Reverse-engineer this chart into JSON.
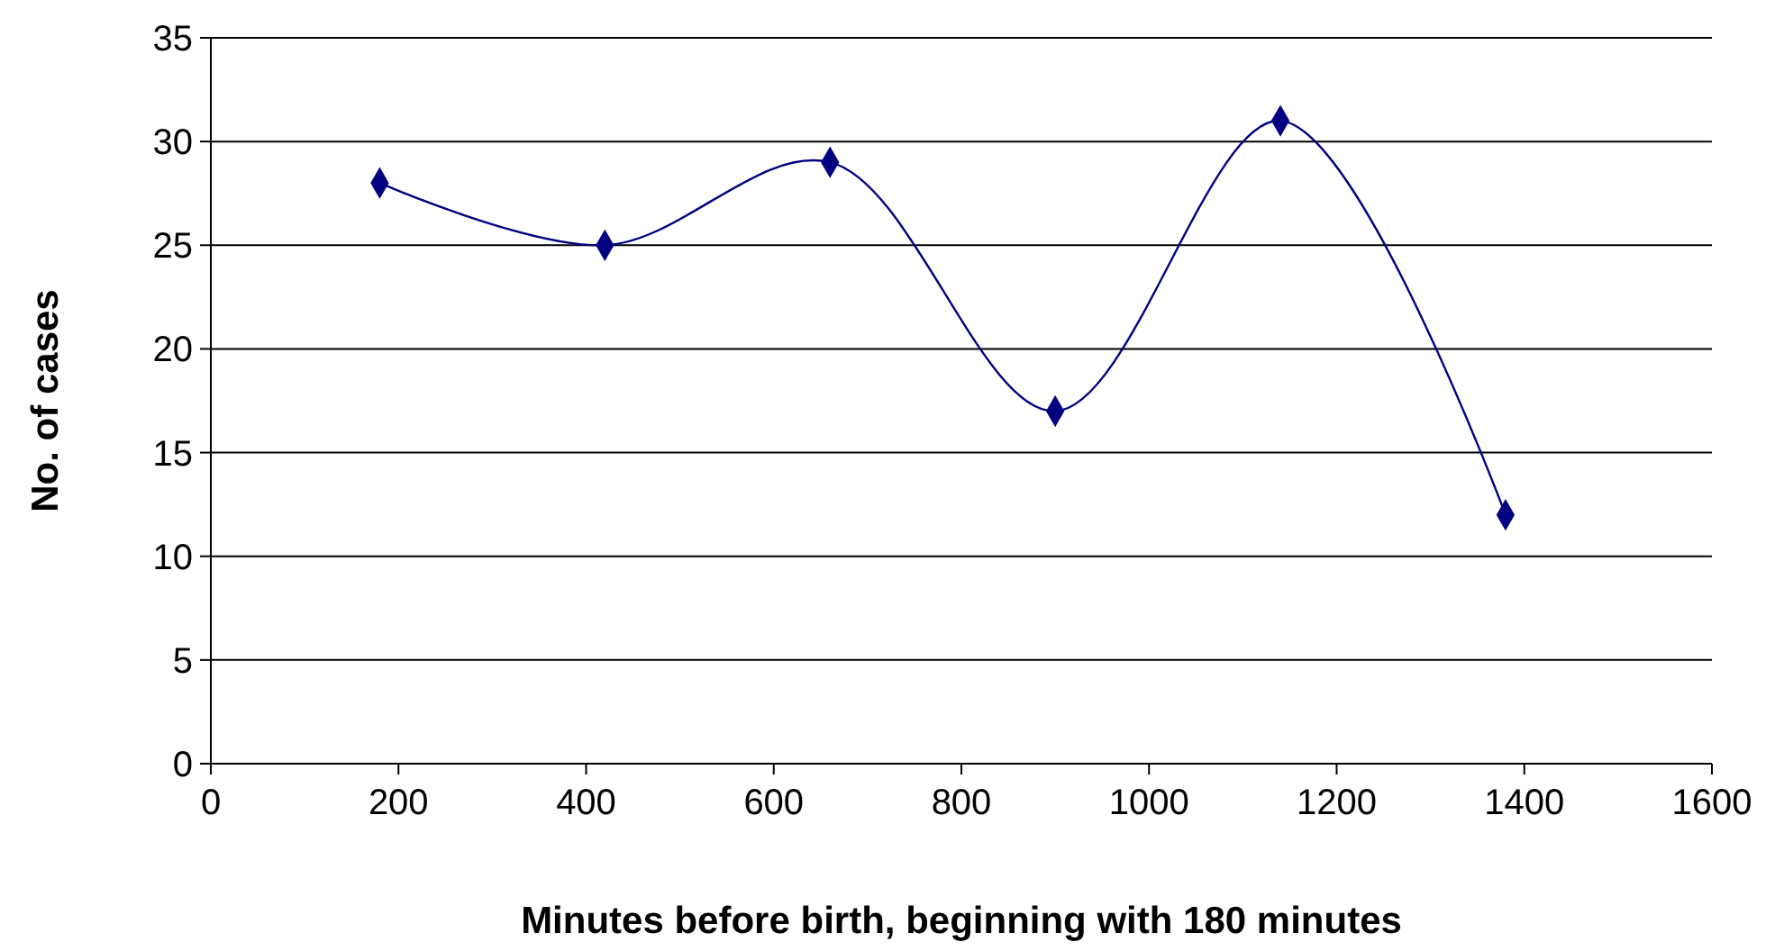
{
  "chart_data": {
    "type": "line",
    "xlabel": "Minutes before birth, beginning with 180 minutes",
    "ylabel": "No. of cases",
    "x": [
      180,
      420,
      660,
      900,
      1140,
      1380
    ],
    "series": [
      {
        "color": "#000080",
        "values": [
          28,
          25,
          29,
          17,
          31,
          12
        ]
      }
    ],
    "xlim": [
      0,
      1600
    ],
    "xticks": [
      0,
      200,
      400,
      600,
      800,
      1000,
      1200,
      1400,
      1600
    ],
    "ylim": [
      0,
      35
    ],
    "yticks": [
      0,
      5,
      10,
      15,
      20,
      25,
      30,
      35
    ],
    "grid": "y",
    "marker": "diamond"
  }
}
